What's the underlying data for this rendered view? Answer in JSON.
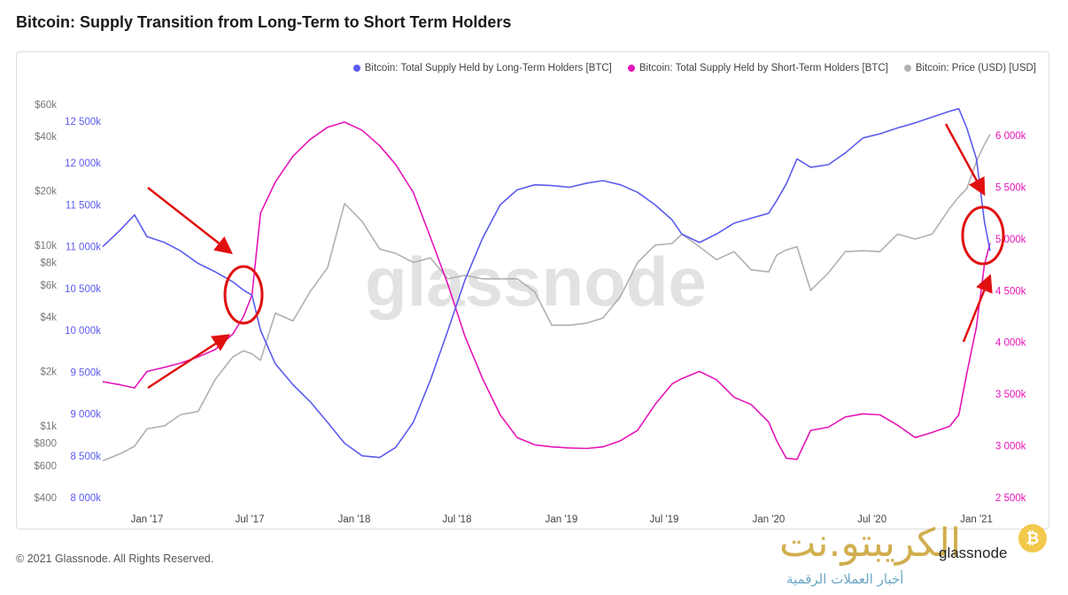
{
  "title": "Bitcoin: Supply Transition from Long-Term to Short Term Holders",
  "footer": "© 2021 Glassnode. All Rights Reserved.",
  "watermark": "glassnode",
  "brand_logo": "الكريبتو.نت",
  "brand_tagline": "أخبار العملات الرقمية",
  "brand_corner": "glassnode",
  "coin_symbol": "₿",
  "colors": {
    "lth": "#5b5bf0",
    "sth": "#e515b8",
    "price": "#b0b0b0",
    "annotation": "#e01010"
  },
  "chart_data": {
    "type": "line",
    "title": "Bitcoin: Supply Transition from Long-Term to Short Term Holders",
    "x_ticks": [
      "Jan '17",
      "Jul '17",
      "Jan '18",
      "Jul '18",
      "Jan '19",
      "Jul '19",
      "Jan '20",
      "Jul '20",
      "Jan '21"
    ],
    "xlim": [
      "2016-10-15",
      "2021-01-25"
    ],
    "left_price_axis": {
      "scale": "log",
      "ticks": [
        400,
        600,
        800,
        1000,
        2000,
        4000,
        6000,
        8000,
        10000,
        20000,
        40000,
        60000
      ],
      "labels": [
        "$400",
        "$600",
        "$800",
        "$1k",
        "$2k",
        "$4k",
        "$6k",
        "$8k",
        "$10k",
        "$20k",
        "$40k",
        "$60k"
      ]
    },
    "left_lth_axis": {
      "ylim": [
        8000000,
        12700000
      ],
      "ticks": [
        8000000,
        8500000,
        9000000,
        9500000,
        10000000,
        10500000,
        11000000,
        11500000,
        12000000,
        12500000
      ],
      "labels": [
        "8 000k",
        "8 500k",
        "9 000k",
        "9 500k",
        "10 000k",
        "10 500k",
        "11 000k",
        "11 500k",
        "12 000k",
        "12 500k"
      ]
    },
    "right_sth_axis": {
      "ylim": [
        2500000,
        6300000
      ],
      "ticks": [
        2500000,
        3000000,
        3500000,
        4000000,
        4500000,
        5000000,
        5500000,
        6000000
      ],
      "labels": [
        "2 500k",
        "3 000k",
        "3 500k",
        "4 000k",
        "4 500k",
        "5 000k",
        "5 500k",
        "6 000k"
      ]
    },
    "legend_position": "top-right",
    "grid": false,
    "series": [
      {
        "name": "Bitcoin: Total Supply Held by Long-Term Holders [BTC]",
        "axis": "left_lth_axis",
        "x": [
          "2016-10-15",
          "2016-11-15",
          "2016-12-10",
          "2017-01-01",
          "2017-02-01",
          "2017-03-01",
          "2017-04-01",
          "2017-05-01",
          "2017-06-01",
          "2017-06-20",
          "2017-07-05",
          "2017-07-20",
          "2017-08-15",
          "2017-09-15",
          "2017-10-15",
          "2017-11-15",
          "2017-12-15",
          "2018-01-15",
          "2018-02-15",
          "2018-03-15",
          "2018-04-15",
          "2018-05-15",
          "2018-06-15",
          "2018-07-15",
          "2018-08-15",
          "2018-09-15",
          "2018-10-15",
          "2018-11-15",
          "2018-12-15",
          "2019-01-15",
          "2019-02-15",
          "2019-03-15",
          "2019-04-15",
          "2019-05-15",
          "2019-06-15",
          "2019-07-15",
          "2019-08-01",
          "2019-09-01",
          "2019-10-01",
          "2019-11-01",
          "2019-12-01",
          "2020-01-01",
          "2020-01-15",
          "2020-02-01",
          "2020-02-20",
          "2020-03-15",
          "2020-04-15",
          "2020-05-15",
          "2020-06-15",
          "2020-07-15",
          "2020-08-15",
          "2020-09-15",
          "2020-10-15",
          "2020-11-15",
          "2020-12-01",
          "2020-12-15",
          "2021-01-01",
          "2021-01-15",
          "2021-01-25"
        ],
        "values": [
          11000000,
          11200000,
          11380000,
          11120000,
          11050000,
          10950000,
          10800000,
          10700000,
          10580000,
          10480000,
          10420000,
          10000000,
          9600000,
          9350000,
          9150000,
          8900000,
          8650000,
          8500000,
          8480000,
          8600000,
          8900000,
          9400000,
          10000000,
          10600000,
          11100000,
          11500000,
          11680000,
          11740000,
          11730000,
          11710000,
          11760000,
          11790000,
          11740000,
          11650000,
          11500000,
          11320000,
          11150000,
          11050000,
          11150000,
          11280000,
          11340000,
          11400000,
          11550000,
          11750000,
          12050000,
          11950000,
          11980000,
          12120000,
          12300000,
          12350000,
          12420000,
          12480000,
          12550000,
          12620000,
          12650000,
          12420000,
          12050000,
          11300000,
          10950000
        ]
      },
      {
        "name": "Bitcoin: Total Supply Held by Short-Term Holders [BTC]",
        "axis": "right_sth_axis",
        "x": [
          "2016-10-15",
          "2016-11-15",
          "2016-12-10",
          "2017-01-01",
          "2017-02-01",
          "2017-03-01",
          "2017-04-01",
          "2017-05-01",
          "2017-06-01",
          "2017-06-20",
          "2017-07-05",
          "2017-07-20",
          "2017-08-15",
          "2017-09-15",
          "2017-10-15",
          "2017-11-15",
          "2017-12-15",
          "2018-01-15",
          "2018-02-15",
          "2018-03-15",
          "2018-04-15",
          "2018-05-15",
          "2018-06-15",
          "2018-07-15",
          "2018-08-15",
          "2018-09-15",
          "2018-10-15",
          "2018-11-15",
          "2018-12-15",
          "2019-01-15",
          "2019-02-15",
          "2019-03-15",
          "2019-04-15",
          "2019-05-15",
          "2019-06-15",
          "2019-07-15",
          "2019-08-01",
          "2019-09-01",
          "2019-10-01",
          "2019-11-01",
          "2019-12-01",
          "2020-01-01",
          "2020-01-15",
          "2020-02-01",
          "2020-02-20",
          "2020-03-15",
          "2020-04-15",
          "2020-05-15",
          "2020-06-15",
          "2020-07-15",
          "2020-08-15",
          "2020-09-15",
          "2020-10-15",
          "2020-11-15",
          "2020-12-01",
          "2020-12-15",
          "2021-01-01",
          "2021-01-15",
          "2021-01-25"
        ],
        "values": [
          3620000,
          3590000,
          3560000,
          3720000,
          3760000,
          3800000,
          3860000,
          3930000,
          4080000,
          4250000,
          4460000,
          5250000,
          5550000,
          5800000,
          5960000,
          6080000,
          6130000,
          6050000,
          5900000,
          5720000,
          5450000,
          5020000,
          4560000,
          4060000,
          3650000,
          3300000,
          3080000,
          3010000,
          2990000,
          2980000,
          2975000,
          2990000,
          3050000,
          3150000,
          3400000,
          3600000,
          3650000,
          3720000,
          3640000,
          3470000,
          3400000,
          3230000,
          3050000,
          2880000,
          2870000,
          3150000,
          3180000,
          3280000,
          3310000,
          3300000,
          3200000,
          3080000,
          3130000,
          3190000,
          3300000,
          3700000,
          4150000,
          4750000,
          4960000
        ]
      },
      {
        "name": "Bitcoin: Price (USD) [USD]",
        "axis": "left_price_axis",
        "x": [
          "2016-10-15",
          "2016-11-15",
          "2016-12-10",
          "2017-01-01",
          "2017-02-01",
          "2017-03-01",
          "2017-04-01",
          "2017-05-01",
          "2017-06-01",
          "2017-06-20",
          "2017-07-05",
          "2017-07-20",
          "2017-08-15",
          "2017-09-15",
          "2017-10-15",
          "2017-11-15",
          "2017-12-15",
          "2018-01-15",
          "2018-02-15",
          "2018-03-15",
          "2018-04-15",
          "2018-05-15",
          "2018-06-15",
          "2018-07-15",
          "2018-08-15",
          "2018-09-15",
          "2018-10-15",
          "2018-11-15",
          "2018-12-15",
          "2019-01-15",
          "2019-02-15",
          "2019-03-15",
          "2019-04-15",
          "2019-05-15",
          "2019-06-15",
          "2019-07-15",
          "2019-08-01",
          "2019-09-01",
          "2019-10-01",
          "2019-11-01",
          "2019-12-01",
          "2020-01-01",
          "2020-01-15",
          "2020-02-01",
          "2020-02-20",
          "2020-03-15",
          "2020-04-15",
          "2020-05-15",
          "2020-06-15",
          "2020-07-15",
          "2020-08-15",
          "2020-09-15",
          "2020-10-15",
          "2020-11-15",
          "2020-12-01",
          "2020-12-15",
          "2021-01-01",
          "2021-01-15",
          "2021-01-25"
        ],
        "values": [
          640,
          700,
          770,
          960,
          1000,
          1150,
          1200,
          1800,
          2400,
          2600,
          2500,
          2300,
          4200,
          3800,
          5500,
          7500,
          17000,
          13500,
          9500,
          9000,
          8000,
          8500,
          6500,
          6800,
          6500,
          6500,
          6500,
          5500,
          3600,
          3600,
          3700,
          3950,
          5200,
          8000,
          10000,
          10200,
          11500,
          9800,
          8300,
          9200,
          7300,
          7100,
          8800,
          9400,
          9800,
          5600,
          7000,
          9200,
          9300,
          9200,
          11500,
          10800,
          11500,
          16000,
          18500,
          20500,
          29000,
          36000,
          41000
        ]
      }
    ]
  }
}
